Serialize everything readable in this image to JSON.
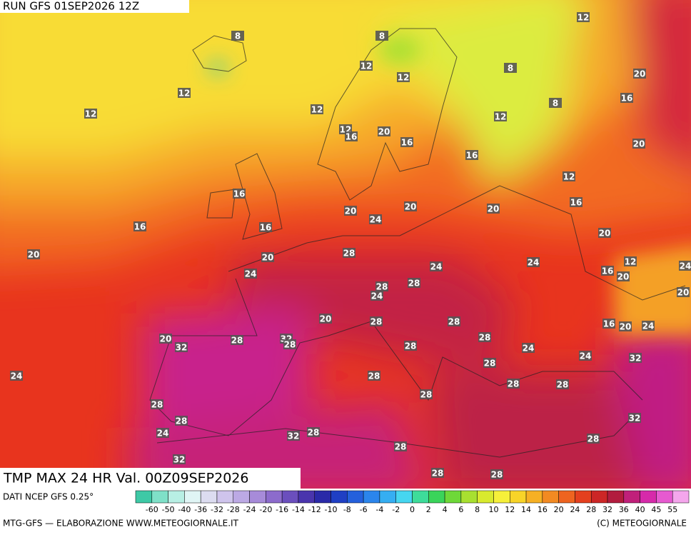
{
  "header": {
    "run": "RUN GFS 01SEP2026 12Z"
  },
  "map": {
    "title": "TMP MAX 24 HR Val. 00Z09SEP2026",
    "contour_labels": [
      12,
      8,
      8,
      12,
      8,
      12,
      20,
      12,
      16,
      8,
      12,
      12,
      12,
      12,
      20,
      16,
      16,
      20,
      16,
      12,
      16,
      16,
      20,
      20,
      24,
      20,
      16,
      16,
      20,
      20,
      20,
      28,
      12,
      24,
      24,
      16,
      20,
      24,
      24,
      28,
      28,
      20,
      24,
      20,
      28,
      28,
      16,
      20,
      24,
      20,
      28,
      32,
      28,
      28,
      32,
      28,
      24,
      24,
      32,
      28,
      24,
      28,
      28,
      28,
      28,
      28,
      28,
      32,
      24,
      32,
      28,
      28,
      28,
      32,
      28,
      28
    ]
  },
  "legend": {
    "source": "DATI NCEP GFS 0.25°",
    "ticks": [
      "-60",
      "-50",
      "-40",
      "-36",
      "-32",
      "-28",
      "-24",
      "-20",
      "-16",
      "-14",
      "-12",
      "-10",
      "-8",
      "-6",
      "-4",
      "-2",
      "0",
      "2",
      "4",
      "6",
      "8",
      "10",
      "12",
      "14",
      "16",
      "20",
      "24",
      "28",
      "32",
      "36",
      "40",
      "45",
      "55"
    ],
    "colors": [
      "#3ec9a6",
      "#7fe0c8",
      "#b8efe4",
      "#e0f5f5",
      "#dcdcf0",
      "#cfc4ec",
      "#bca9e4",
      "#a78bd9",
      "#8c6bcc",
      "#6b4fbd",
      "#4a35ad",
      "#2a2aa8",
      "#1f3fc4",
      "#2460dc",
      "#2b85ec",
      "#35aef2",
      "#46d6f0",
      "#3edc9a",
      "#3ad45a",
      "#6ed838",
      "#a8e030",
      "#d8ea2e",
      "#f6f03a",
      "#f8d428",
      "#f6b024",
      "#f28a22",
      "#ee6420",
      "#e4401e",
      "#cc2626",
      "#b21c3e",
      "#c0207a",
      "#d62aaa",
      "#e65ad0",
      "#f4a6ec"
    ],
    "producer": "MTG-GFS — ELABORAZIONE WWW.METEOGIORNALE.IT",
    "copyright": "(C) METEOGIORNALE"
  }
}
